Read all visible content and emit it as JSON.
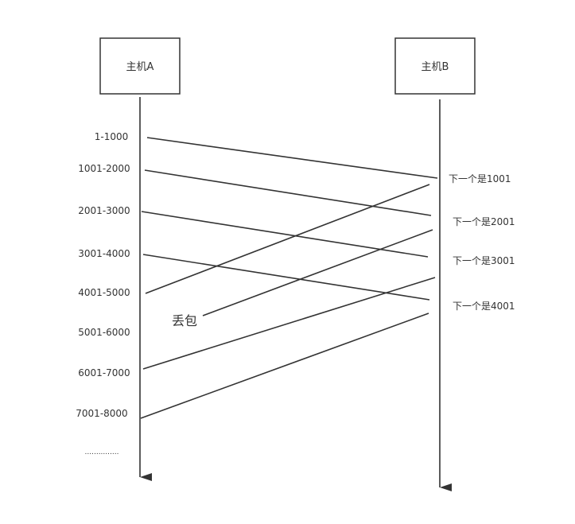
{
  "hosts": {
    "a": {
      "label": "主机A"
    },
    "b": {
      "label": "主机B"
    }
  },
  "segments": [
    {
      "label": "1-1000"
    },
    {
      "label": "1001-2000"
    },
    {
      "label": "2001-3000"
    },
    {
      "label": "3001-4000"
    },
    {
      "label": "4001-5000"
    },
    {
      "label": "5001-6000"
    },
    {
      "label": "6001-7000"
    },
    {
      "label": "7001-8000"
    }
  ],
  "ellipsis": "...............",
  "acks": [
    {
      "label": "下一个是1001"
    },
    {
      "label": "下一个是2001"
    },
    {
      "label": "下一个是3001"
    },
    {
      "label": "下一个是4001"
    }
  ],
  "loss": {
    "label": "丢包",
    "color": "#d0342c"
  },
  "colors": {
    "line": "#333333",
    "text": "#333333",
    "background": "#ffffff"
  }
}
